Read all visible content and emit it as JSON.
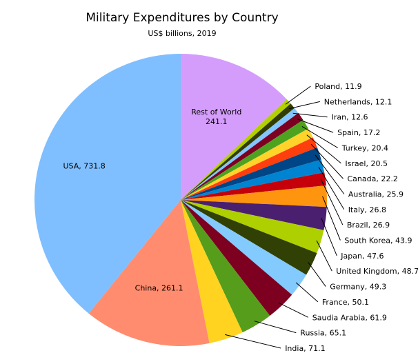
{
  "chart_data": {
    "type": "pie",
    "title": "Military Expenditures by Country",
    "subtitle": "US$ billions, 2019",
    "start": "12 o'clock",
    "direction": "clockwise",
    "slices": [
      {
        "name": "Rest of World",
        "value": 241.1,
        "color": "#d49dfb",
        "label": "Rest of World\n241.1",
        "label_style": "inside"
      },
      {
        "name": "Poland",
        "value": 11.9,
        "color": "#b2d000",
        "label": "Poland, 11.9",
        "label_style": "leader"
      },
      {
        "name": "Netherlands",
        "value": 12.1,
        "color": "#333c00",
        "label": "Netherlands, 12.1",
        "label_style": "leader"
      },
      {
        "name": "Iran",
        "value": 12.6,
        "color": "#83c5ff",
        "label": "Iran, 12.6",
        "label_style": "leader"
      },
      {
        "name": "Spain",
        "value": 17.2,
        "color": "#7d0023",
        "label": "Spain, 17.2",
        "label_style": "leader"
      },
      {
        "name": "Turkey",
        "value": 20.4,
        "color": "#4da320",
        "label": "Turkey, 20.4",
        "label_style": "leader"
      },
      {
        "name": "Israel",
        "value": 20.5,
        "color": "#ffd32a",
        "label": "Israel, 20.5",
        "label_style": "leader"
      },
      {
        "name": "Canada",
        "value": 22.2,
        "color": "#ff3e0e",
        "label": "Canada, 22.2",
        "label_style": "leader"
      },
      {
        "name": "Australia",
        "value": 25.9,
        "color": "#004586",
        "label": "Australia, 25.9",
        "label_style": "leader"
      },
      {
        "name": "Italy",
        "value": 26.8,
        "color": "#0084d1",
        "label": "Italy, 26.8",
        "label_style": "leader"
      },
      {
        "name": "Brazil",
        "value": 26.9,
        "color": "#c5000b",
        "label": "Brazil, 26.9",
        "label_style": "leader"
      },
      {
        "name": "South Korea",
        "value": 43.9,
        "color": "#ff950e",
        "label": "South Korea, 43.9",
        "label_style": "leader"
      },
      {
        "name": "Japan",
        "value": 47.6,
        "color": "#4b1f6f",
        "label": "Japan, 47.6",
        "label_style": "leader"
      },
      {
        "name": "United Kingdom",
        "value": 48.7,
        "color": "#aecf00",
        "label": "United Kingdom, 48.7",
        "label_style": "leader"
      },
      {
        "name": "Germany",
        "value": 49.3,
        "color": "#314004",
        "label": "Germany, 49.3",
        "label_style": "leader"
      },
      {
        "name": "France",
        "value": 50.1,
        "color": "#83caff",
        "label": "France, 50.1",
        "label_style": "leader"
      },
      {
        "name": "Saudia Arabia",
        "value": 61.9,
        "color": "#7e0021",
        "label": "Saudia Arabia, 61.9",
        "label_style": "leader"
      },
      {
        "name": "Russia",
        "value": 65.1,
        "color": "#579d1c",
        "label": "Russia, 65.1",
        "label_style": "leader"
      },
      {
        "name": "India",
        "value": 71.1,
        "color": "#ffd320",
        "label": "India, 71.1",
        "label_style": "leader"
      },
      {
        "name": "China",
        "value": 261.1,
        "color": "#ff8c6e",
        "label": "China, 261.1",
        "label_style": "inside"
      },
      {
        "name": "USA",
        "value": 731.8,
        "color": "#7fbfff",
        "label": "USA, 731.8",
        "label_style": "inside"
      }
    ]
  }
}
